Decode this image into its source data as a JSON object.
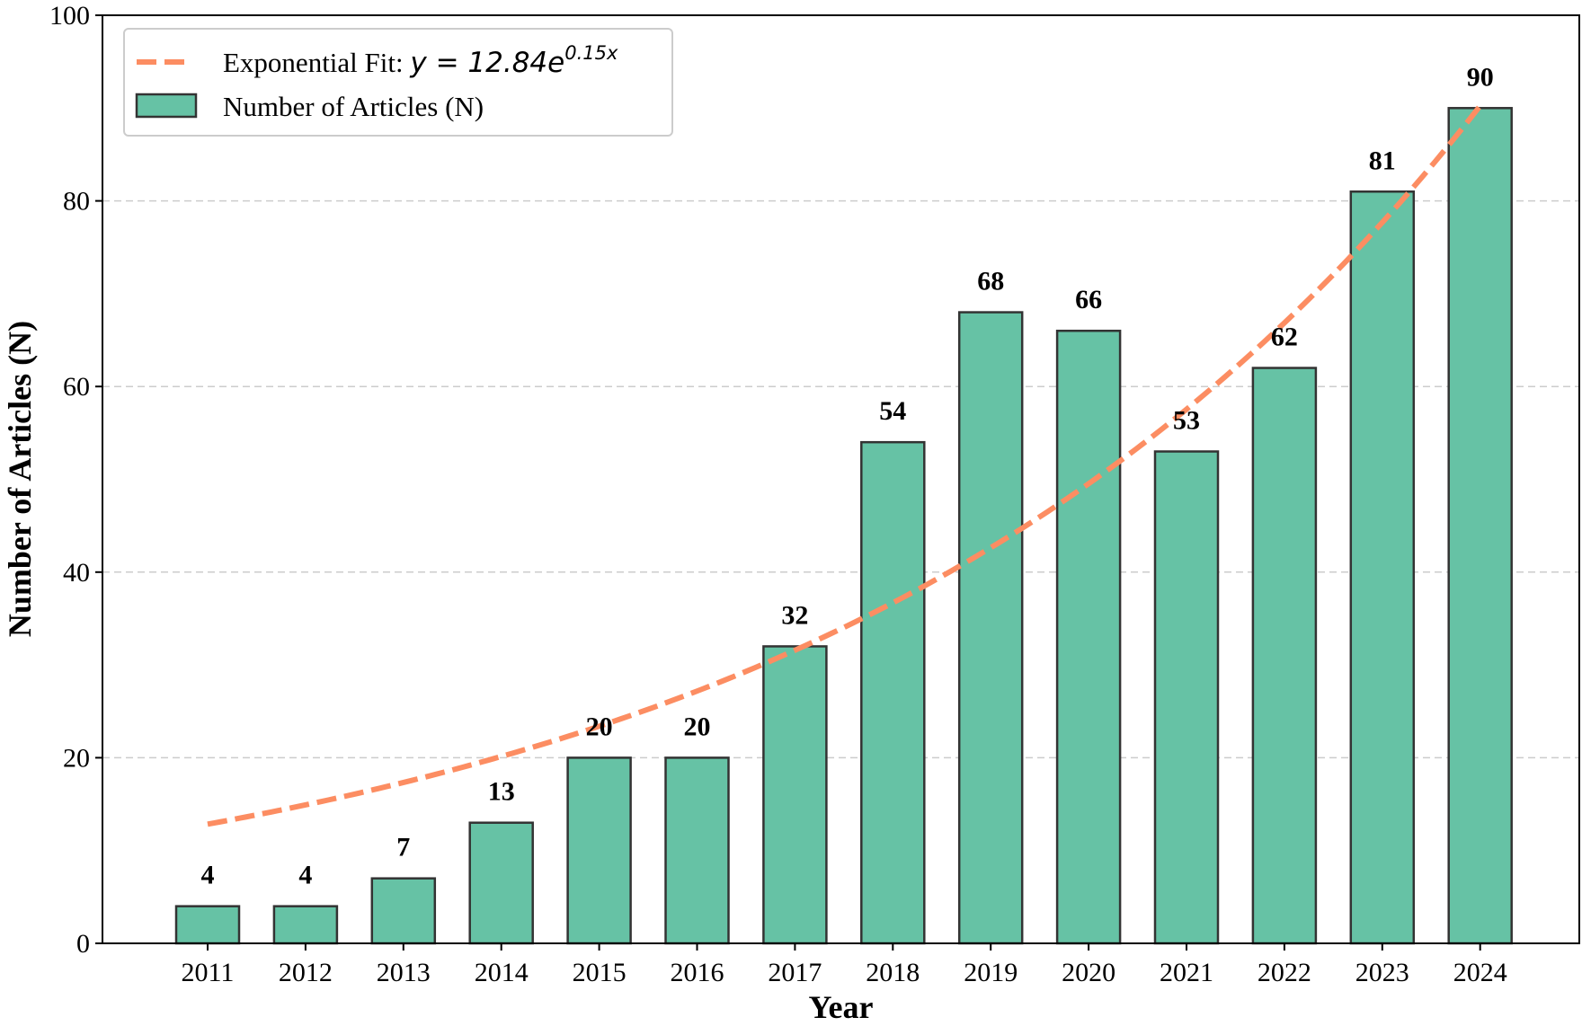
{
  "chart_data": {
    "type": "bar",
    "categories": [
      "2011",
      "2012",
      "2013",
      "2014",
      "2015",
      "2016",
      "2017",
      "2018",
      "2019",
      "2020",
      "2021",
      "2022",
      "2023",
      "2024"
    ],
    "values": [
      4,
      4,
      7,
      13,
      20,
      20,
      32,
      54,
      68,
      66,
      53,
      62,
      81,
      90
    ],
    "data_labels": [
      "4",
      "4",
      "7",
      "13",
      "20",
      "20",
      "32",
      "54",
      "68",
      "66",
      "53",
      "62",
      "81",
      "90"
    ],
    "xlabel": "Year",
    "ylabel": "Number of Articles (N)",
    "ylim": [
      0,
      100
    ],
    "yticks": [
      0,
      20,
      40,
      60,
      80,
      100
    ],
    "ytick_labels": [
      "0",
      "20",
      "40",
      "60",
      "80",
      "100"
    ],
    "grid": "y-dashed",
    "legend_position": "top-left",
    "series": [
      {
        "name": "Number of Articles (N)",
        "kind": "bar",
        "values": [
          4,
          4,
          7,
          13,
          20,
          20,
          32,
          54,
          68,
          66,
          53,
          62,
          81,
          90
        ],
        "color": "#66c2a5",
        "edge_color": "#333333"
      }
    ],
    "fit": {
      "name_prefix": "Exponential Fit: ",
      "equation_lhs": "y = 12.84e",
      "equation_exponent": "0.15x",
      "kind": "dashed-line",
      "color": "#fc8d62",
      "coefficient_a": 12.84,
      "coefficient_b": 0.15
    }
  }
}
